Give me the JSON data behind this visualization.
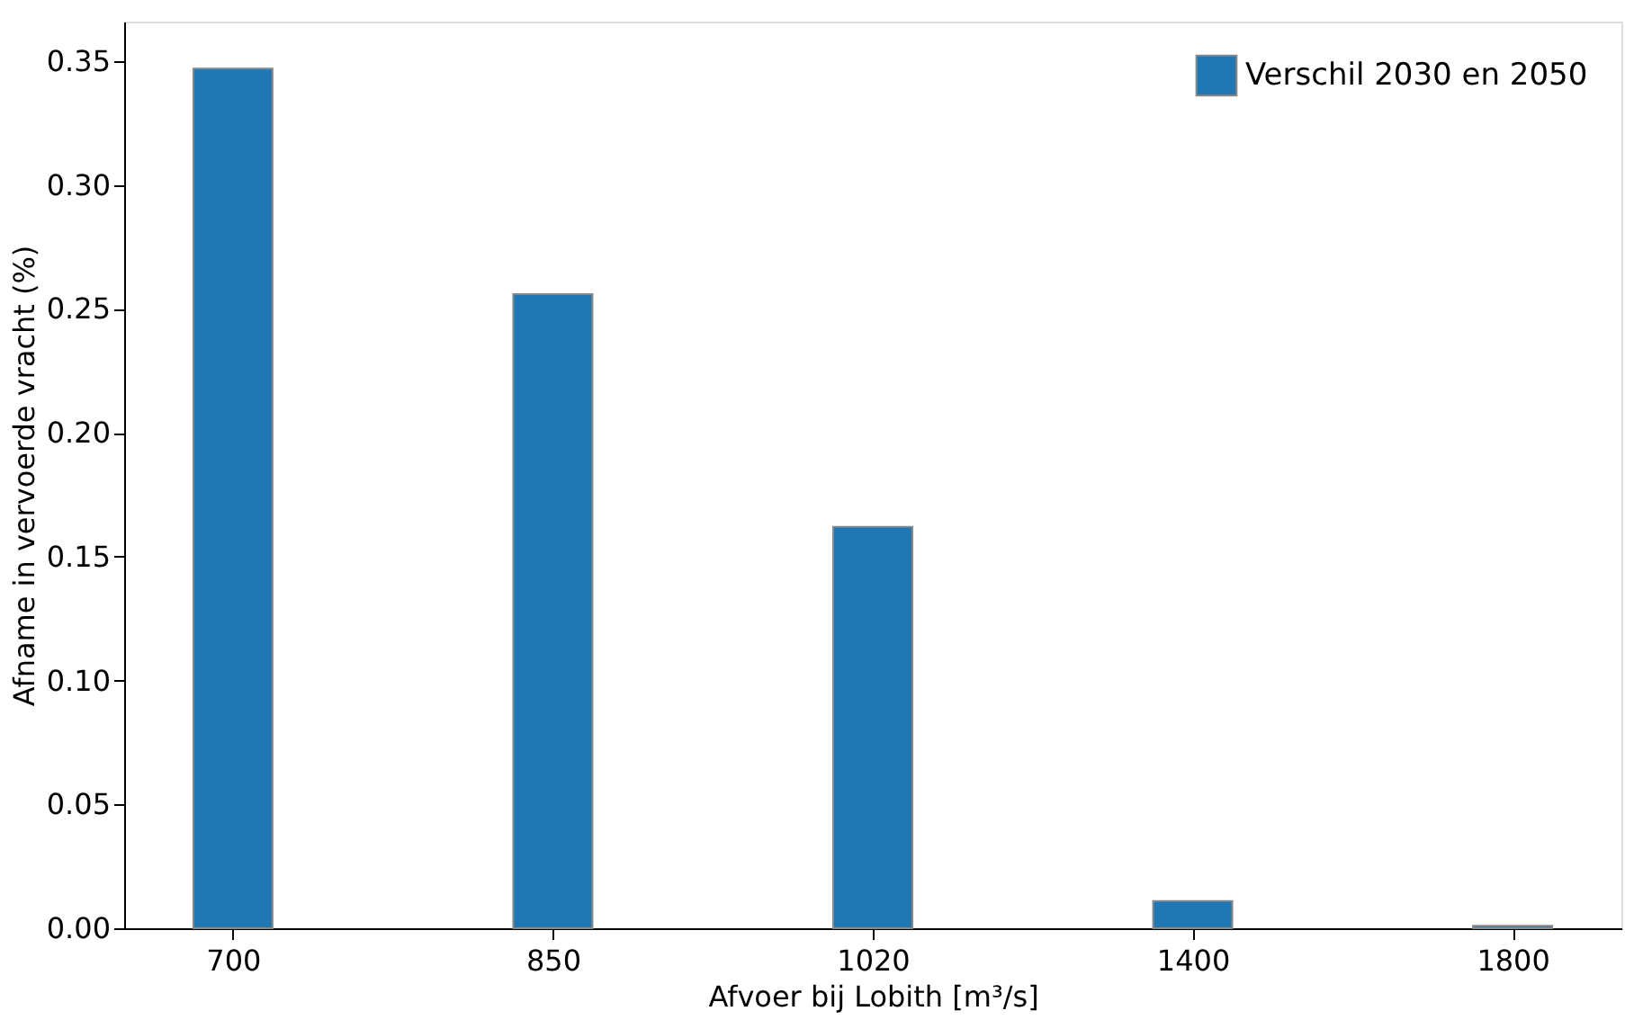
{
  "chart_data": {
    "type": "bar",
    "xlabel": "Afvoer bij Lobith [m³/s]",
    "ylabel": "Afname in vervoerde vracht (%)",
    "categories": [
      "700",
      "850",
      "1020",
      "1400",
      "1800"
    ],
    "series": [
      {
        "name": "Verschil 2030 en 2050",
        "color": "#1f77b4",
        "values": [
          0.347,
          0.256,
          0.162,
          0.011,
          0.001
        ]
      }
    ],
    "ylim": [
      0,
      0.366
    ],
    "yticks": [
      {
        "value": 0,
        "label": "0.00"
      },
      {
        "value": 0.05,
        "label": "0.05"
      },
      {
        "value": 0.1,
        "label": "0.10"
      },
      {
        "value": 0.15,
        "label": "0.15"
      },
      {
        "value": 0.2,
        "label": "0.20"
      },
      {
        "value": 0.25,
        "label": "0.25"
      },
      {
        "value": 0.3,
        "label": "0.30"
      },
      {
        "value": 0.35,
        "label": "0.35"
      }
    ],
    "grid": false,
    "legend": "top right"
  }
}
